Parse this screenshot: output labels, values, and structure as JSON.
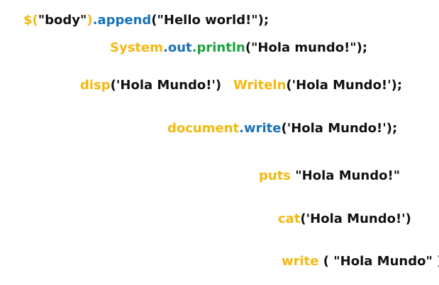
{
  "colors": {
    "yellow": "#f5b80f",
    "blue": "#1a72b8",
    "green": "#19a33a",
    "black": "#111111",
    "background": "#ffffff"
  },
  "snippets": {
    "jquery": {
      "prefix": "$(",
      "arg": "\"body\"",
      "close": ")",
      "dot": ".",
      "method": "append",
      "args": "(\"Hello world!\");"
    },
    "java": {
      "obj": "System",
      "dot1": ".",
      "field": "out",
      "dot2": ".",
      "method": "println",
      "args": "(\"Hola mundo!\");"
    },
    "matlab": {
      "fn": "disp",
      "args": "('Hola Mundo!')"
    },
    "pascal": {
      "fn": "Writeln",
      "args": "('Hola Mundo!');"
    },
    "javascript": {
      "obj": "document",
      "dot": ".",
      "method": "write",
      "args": "('Hola Mundo!');"
    },
    "ruby": {
      "fn": "puts",
      "args": " \"Hola Mundo!\""
    },
    "r": {
      "fn": "cat",
      "args": "('Hola Mundo!')"
    },
    "fortran": {
      "fn": "write",
      "args": " ( \"Hola Mundo\" );"
    }
  }
}
